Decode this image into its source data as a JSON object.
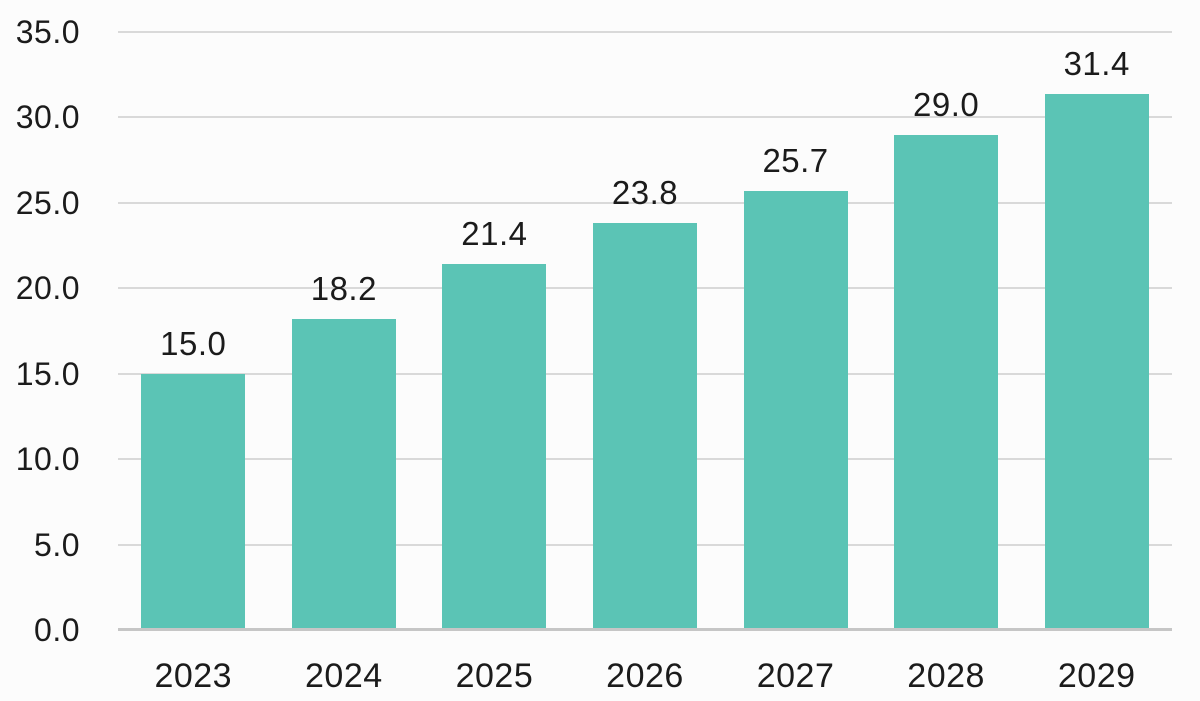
{
  "chart_data": {
    "type": "bar",
    "title": "",
    "xlabel": "",
    "ylabel": "",
    "categories": [
      "2023",
      "2024",
      "2025",
      "2026",
      "2027",
      "2028",
      "2029"
    ],
    "values": [
      15.0,
      18.2,
      21.4,
      23.8,
      25.7,
      29.0,
      31.4
    ],
    "data_labels": [
      "15.0",
      "18.2",
      "21.4",
      "23.8",
      "25.7",
      "29.0",
      "31.4"
    ],
    "ylim": [
      0,
      35
    ],
    "ytick_step": 5,
    "ytick_labels": [
      "0.0",
      "5.0",
      "10.0",
      "15.0",
      "20.0",
      "25.0",
      "30.0",
      "35.0"
    ],
    "grid": true,
    "legend": false,
    "colors": {
      "bar_fill": "#5bc4b5",
      "gridline": "#d9d9d9",
      "axis_line": "#c6c6c6",
      "text": "#1b1b1b",
      "background": "#fcfcfc"
    }
  }
}
